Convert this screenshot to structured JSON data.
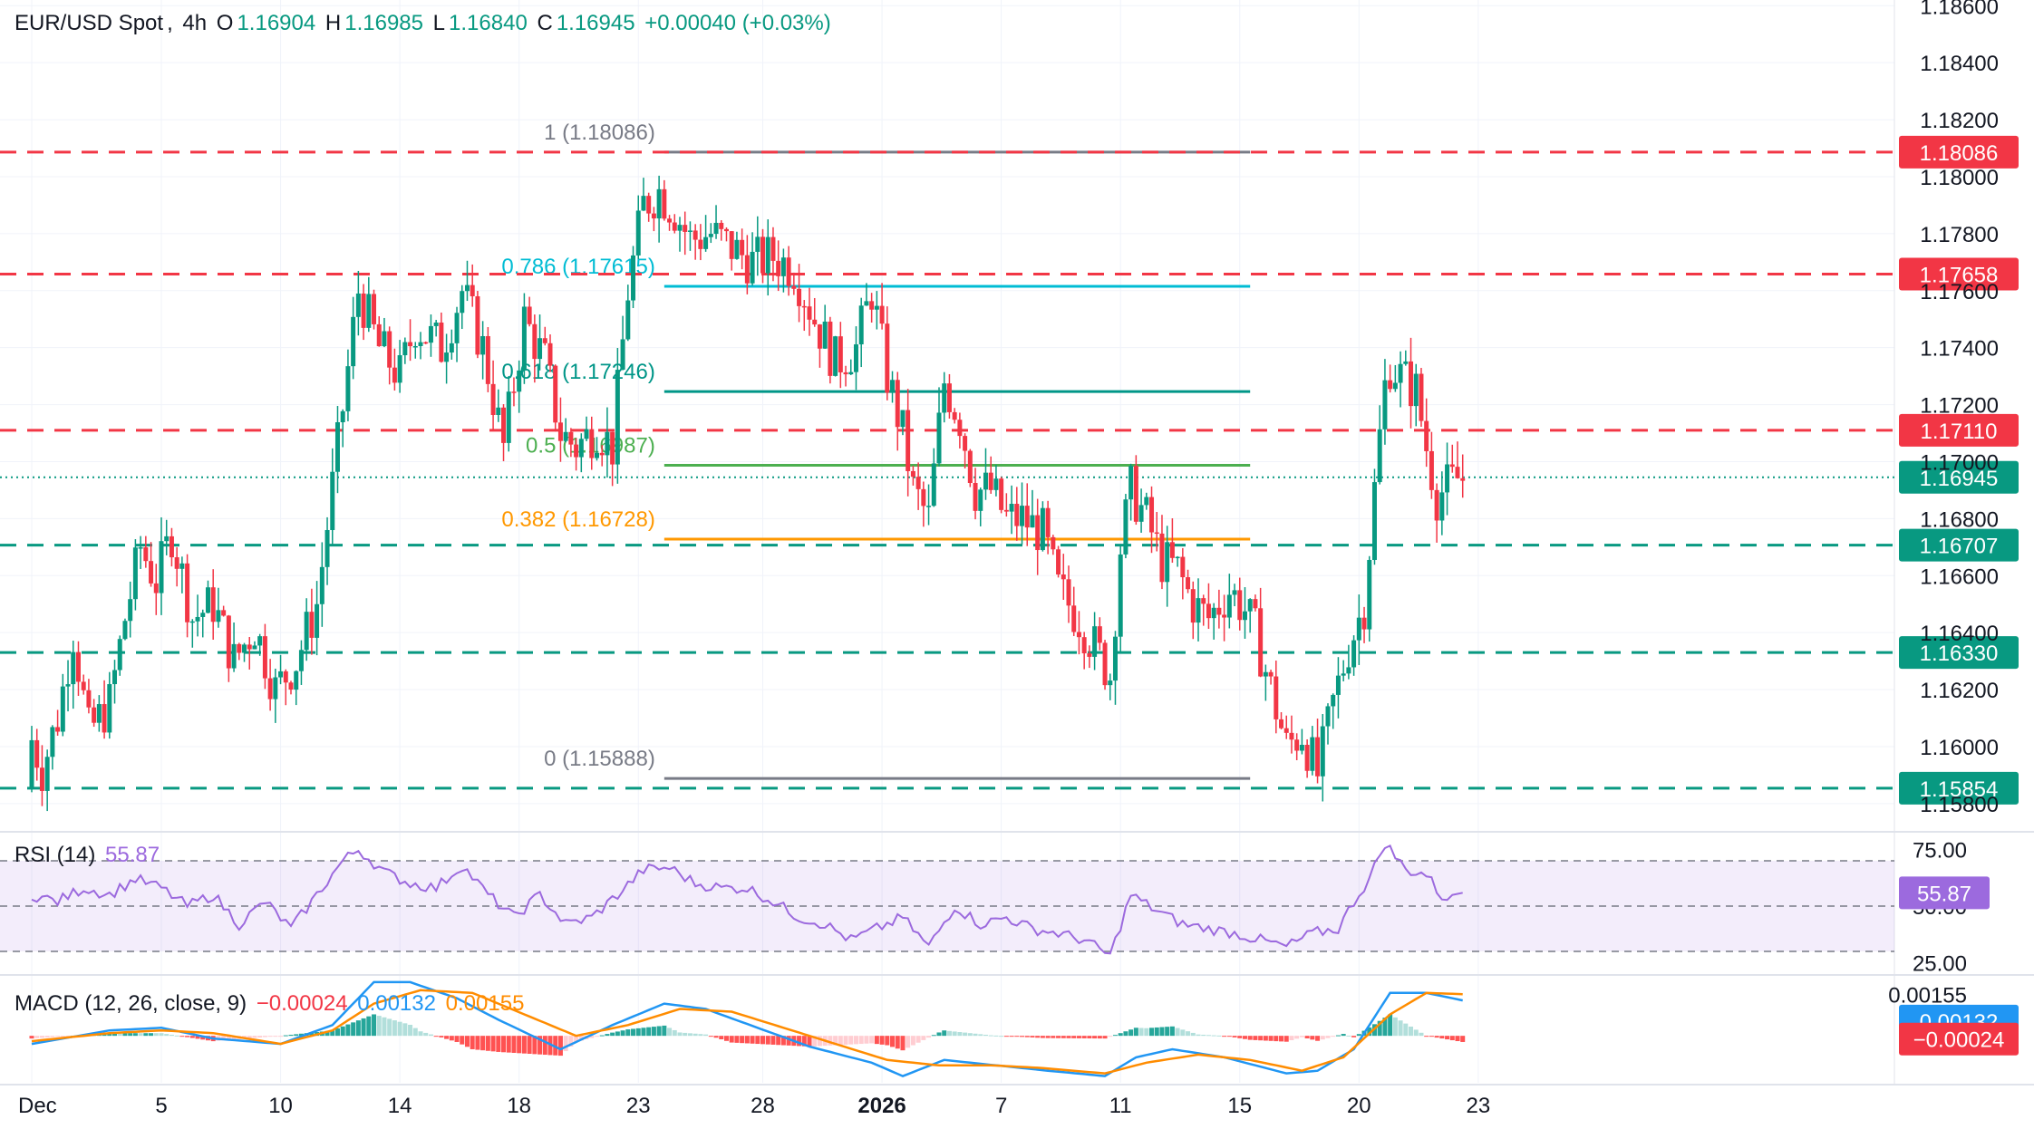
{
  "header": {
    "symbol": "EUR/USD Spot",
    "timeframe": "4h",
    "o_label": "O",
    "open": "1.16904",
    "h_label": "H",
    "high": "1.16985",
    "l_label": "L",
    "low": "1.16840",
    "c_label": "C",
    "close": "1.16945",
    "change": "+0.00040 (+0.03%)"
  },
  "rsi_legend": {
    "name": "RSI (14)",
    "value": "55.87"
  },
  "macd_legend": {
    "name": "MACD (12, 26, close, 9)",
    "hist": "−0.00024",
    "macd": "0.00132",
    "signal": "0.00155"
  },
  "colors": {
    "up": "#089981",
    "down": "#f23645",
    "resistance": "#f23645",
    "support": "#089981",
    "fib_1_0": "#787b86",
    "fib_0_786": "#00bcd4",
    "fib_0_618": "#009688",
    "fib_0_5": "#4caf50",
    "fib_0_382": "#ff9800",
    "rsi": "#9c6ade",
    "macd": "#2196f3",
    "signal": "#ff8c00"
  },
  "chart_data": [
    {
      "type": "candlestick",
      "title": "EUR/USD Spot, 4h",
      "ylim": [
        1.1572,
        1.1862
      ],
      "y_ticks": [
        "1.15800",
        "1.16000",
        "1.16200",
        "1.16400",
        "1.16600",
        "1.16800",
        "1.17000",
        "1.17200",
        "1.17400",
        "1.17600",
        "1.17800",
        "1.18000",
        "1.18200",
        "1.18400",
        "1.18600"
      ],
      "x_ticks": [
        {
          "label": "Dec",
          "t": 0
        },
        {
          "label": "5",
          "t": 2.5
        },
        {
          "label": "10",
          "t": 4.8
        },
        {
          "label": "14",
          "t": 7.1
        },
        {
          "label": "18",
          "t": 9.4
        },
        {
          "label": "23",
          "t": 11.7
        },
        {
          "label": "28",
          "t": 14.1
        },
        {
          "label": "2026",
          "t": 16.4
        },
        {
          "label": "7",
          "t": 18.7
        },
        {
          "label": "11",
          "t": 21.0
        },
        {
          "label": "15",
          "t": 23.3
        },
        {
          "label": "20",
          "t": 25.6
        },
        {
          "label": "23",
          "t": 27.9
        }
      ],
      "anchors": [
        [
          0.0,
          1.1585
        ],
        [
          0.05,
          1.1605
        ],
        [
          0.3,
          1.1592
        ],
        [
          0.6,
          1.161
        ],
        [
          0.9,
          1.164
        ],
        [
          1.2,
          1.1605
        ],
        [
          1.6,
          1.1615
        ],
        [
          1.9,
          1.1645
        ],
        [
          2.2,
          1.167
        ],
        [
          2.5,
          1.1658
        ],
        [
          2.8,
          1.1675
        ],
        [
          3.2,
          1.1645
        ],
        [
          3.6,
          1.165
        ],
        [
          4.0,
          1.163
        ],
        [
          4.4,
          1.1642
        ],
        [
          4.8,
          1.162
        ],
        [
          5.2,
          1.163
        ],
        [
          5.6,
          1.165
        ],
        [
          6.0,
          1.1705
        ],
        [
          6.4,
          1.176
        ],
        [
          6.8,
          1.174
        ],
        [
          7.2,
          1.173
        ],
        [
          7.5,
          1.1748
        ],
        [
          8.0,
          1.174
        ],
        [
          8.4,
          1.176
        ],
        [
          8.8,
          1.174
        ],
        [
          9.2,
          1.1705
        ],
        [
          9.6,
          1.175
        ],
        [
          10.0,
          1.1735
        ],
        [
          10.3,
          1.171
        ],
        [
          10.6,
          1.1705
        ],
        [
          11.0,
          1.1712
        ],
        [
          11.3,
          1.1705
        ],
        [
          11.6,
          1.176
        ],
        [
          11.9,
          1.179
        ],
        [
          12.2,
          1.1795
        ],
        [
          12.5,
          1.1788
        ],
        [
          12.8,
          1.1778
        ],
        [
          13.2,
          1.178
        ],
        [
          13.6,
          1.1775
        ],
        [
          14.0,
          1.177
        ],
        [
          14.4,
          1.1772
        ],
        [
          14.8,
          1.1768
        ],
        [
          15.2,
          1.175
        ],
        [
          15.6,
          1.1735
        ],
        [
          16.0,
          1.174
        ],
        [
          16.3,
          1.176
        ],
        [
          16.6,
          1.173
        ],
        [
          16.9,
          1.171
        ],
        [
          17.1,
          1.169
        ],
        [
          17.4,
          1.168
        ],
        [
          17.7,
          1.1728
        ],
        [
          18.0,
          1.1715
        ],
        [
          18.3,
          1.169
        ],
        [
          18.6,
          1.169
        ],
        [
          18.9,
          1.168
        ],
        [
          19.2,
          1.168
        ],
        [
          19.6,
          1.1675
        ],
        [
          19.9,
          1.1655
        ],
        [
          20.3,
          1.1645
        ],
        [
          20.6,
          1.1635
        ],
        [
          20.9,
          1.1625
        ],
        [
          21.1,
          1.167
        ],
        [
          21.3,
          1.169
        ],
        [
          21.6,
          1.168
        ],
        [
          21.9,
          1.1665
        ],
        [
          22.2,
          1.1662
        ],
        [
          22.5,
          1.165
        ],
        [
          22.8,
          1.1645
        ],
        [
          23.2,
          1.1655
        ],
        [
          23.5,
          1.1648
        ],
        [
          23.7,
          1.164
        ],
        [
          24.0,
          1.162
        ],
        [
          24.3,
          1.16
        ],
        [
          24.6,
          1.1605
        ],
        [
          24.9,
          1.159
        ],
        [
          25.2,
          1.1615
        ],
        [
          25.5,
          1.1635
        ],
        [
          25.8,
          1.165
        ],
        [
          25.95,
          1.168
        ],
        [
          26.05,
          1.17
        ],
        [
          26.25,
          1.1735
        ],
        [
          26.5,
          1.173
        ],
        [
          26.8,
          1.1725
        ],
        [
          27.0,
          1.1705
        ],
        [
          27.2,
          1.1688
        ],
        [
          27.45,
          1.1692
        ],
        [
          27.6,
          1.1694
        ]
      ],
      "last_price": 1.16945
    },
    {
      "type": "line",
      "name": "RSI (14)",
      "ylim": [
        20,
        80
      ],
      "y_ticks": [
        "75.00",
        "50.00",
        "25.00"
      ],
      "bands": [
        30,
        50,
        70
      ],
      "anchors": [
        [
          0,
          55
        ],
        [
          0.5,
          52
        ],
        [
          1.0,
          58
        ],
        [
          1.5,
          55
        ],
        [
          2.0,
          62
        ],
        [
          2.5,
          58
        ],
        [
          3.0,
          50
        ],
        [
          3.5,
          55
        ],
        [
          4.0,
          42
        ],
        [
          4.5,
          52
        ],
        [
          5.0,
          40
        ],
        [
          5.5,
          55
        ],
        [
          6.0,
          70
        ],
        [
          6.3,
          75
        ],
        [
          6.8,
          65
        ],
        [
          7.3,
          60
        ],
        [
          7.8,
          58
        ],
        [
          8.3,
          68
        ],
        [
          8.8,
          55
        ],
        [
          9.3,
          45
        ],
        [
          9.8,
          55
        ],
        [
          10.3,
          42
        ],
        [
          10.8,
          45
        ],
        [
          11.3,
          55
        ],
        [
          11.8,
          66
        ],
        [
          12.3,
          67
        ],
        [
          12.8,
          60
        ],
        [
          13.3,
          58
        ],
        [
          13.8,
          58
        ],
        [
          14.3,
          52
        ],
        [
          14.8,
          45
        ],
        [
          15.3,
          42
        ],
        [
          15.8,
          35
        ],
        [
          16.3,
          40
        ],
        [
          16.8,
          45
        ],
        [
          17.3,
          32
        ],
        [
          17.8,
          50
        ],
        [
          18.3,
          42
        ],
        [
          18.8,
          45
        ],
        [
          19.3,
          40
        ],
        [
          19.8,
          38
        ],
        [
          20.3,
          35
        ],
        [
          20.8,
          28
        ],
        [
          21.2,
          55
        ],
        [
          21.7,
          48
        ],
        [
          22.2,
          42
        ],
        [
          22.7,
          40
        ],
        [
          23.2,
          38
        ],
        [
          23.7,
          35
        ],
        [
          24.2,
          32
        ],
        [
          24.7,
          38
        ],
        [
          25.2,
          40
        ],
        [
          25.5,
          52
        ],
        [
          25.8,
          62
        ],
        [
          26.1,
          78
        ],
        [
          26.5,
          66
        ],
        [
          26.9,
          64
        ],
        [
          27.2,
          54
        ],
        [
          27.6,
          55.87
        ]
      ],
      "last_value": "55.87"
    },
    {
      "type": "line",
      "name": "MACD (12, 26, close, 9)",
      "ylim": [
        -0.00175,
        0.0022
      ],
      "y_ticks": [
        "0.00155"
      ],
      "series": [
        {
          "name": "MACD",
          "anchors": [
            [
              0,
              -0.0003
            ],
            [
              1.5,
              0.0002
            ],
            [
              2.5,
              0.0003
            ],
            [
              3.5,
              -0.0001
            ],
            [
              4.8,
              -0.0003
            ],
            [
              5.8,
              0.0004
            ],
            [
              6.6,
              0.002
            ],
            [
              7.3,
              0.002
            ],
            [
              8.2,
              0.0014
            ],
            [
              9.0,
              0.0006
            ],
            [
              10.2,
              -0.0005
            ],
            [
              11.2,
              0.0004
            ],
            [
              12.2,
              0.0012
            ],
            [
              13.0,
              0.001
            ],
            [
              14.0,
              0.0003
            ],
            [
              15.0,
              -0.0004
            ],
            [
              16.2,
              -0.001
            ],
            [
              16.8,
              -0.0015
            ],
            [
              17.6,
              -0.0009
            ],
            [
              18.6,
              -0.0011
            ],
            [
              19.6,
              -0.0013
            ],
            [
              20.7,
              -0.0015
            ],
            [
              21.3,
              -0.0008
            ],
            [
              22.0,
              -0.0005
            ],
            [
              23.0,
              -0.0008
            ],
            [
              24.2,
              -0.0014
            ],
            [
              24.8,
              -0.0013
            ],
            [
              25.5,
              -0.0005
            ],
            [
              26.2,
              0.0016
            ],
            [
              26.9,
              0.0016
            ],
            [
              27.6,
              0.00132
            ]
          ]
        },
        {
          "name": "Signal",
          "anchors": [
            [
              0,
              -0.0002
            ],
            [
              1.5,
              0.0001
            ],
            [
              2.5,
              0.0002
            ],
            [
              3.5,
              0.0001
            ],
            [
              4.8,
              -0.0003
            ],
            [
              5.8,
              0.0002
            ],
            [
              6.6,
              0.0012
            ],
            [
              7.5,
              0.0017
            ],
            [
              8.5,
              0.0016
            ],
            [
              9.5,
              0.0008
            ],
            [
              10.5,
              0.0
            ],
            [
              11.5,
              0.0004
            ],
            [
              12.5,
              0.001
            ],
            [
              13.5,
              0.0009
            ],
            [
              14.5,
              0.0003
            ],
            [
              15.5,
              -0.0003
            ],
            [
              16.5,
              -0.0009
            ],
            [
              17.5,
              -0.0011
            ],
            [
              18.5,
              -0.0011
            ],
            [
              19.5,
              -0.0012
            ],
            [
              20.7,
              -0.0014
            ],
            [
              21.5,
              -0.001
            ],
            [
              22.5,
              -0.0007
            ],
            [
              23.5,
              -0.0009
            ],
            [
              24.5,
              -0.0013
            ],
            [
              25.3,
              -0.0008
            ],
            [
              26.2,
              0.0008
            ],
            [
              26.9,
              0.0016
            ],
            [
              27.6,
              0.00155
            ]
          ]
        }
      ],
      "last_values": {
        "histogram": "−0.00024",
        "macd": "0.00132",
        "signal": "0.00155"
      }
    }
  ],
  "levels": {
    "resistance": [
      "1.18086",
      "1.17658",
      "1.17110"
    ],
    "support": [
      "1.16707",
      "1.16330",
      "1.15854"
    ],
    "last_price_label": "1.16945"
  },
  "fib_levels": [
    {
      "label": "1 (1.18086)",
      "price": 1.18086
    },
    {
      "label": "0.786 (1.17615)",
      "price": 1.17615
    },
    {
      "label": "0.618 (1.17246)",
      "price": 1.17246
    },
    {
      "label": "0.5 (1.16987)",
      "price": 1.16987
    },
    {
      "label": "0.382 (1.16728)",
      "price": 1.16728
    },
    {
      "label": "0 (1.15888)",
      "price": 1.15888
    }
  ]
}
